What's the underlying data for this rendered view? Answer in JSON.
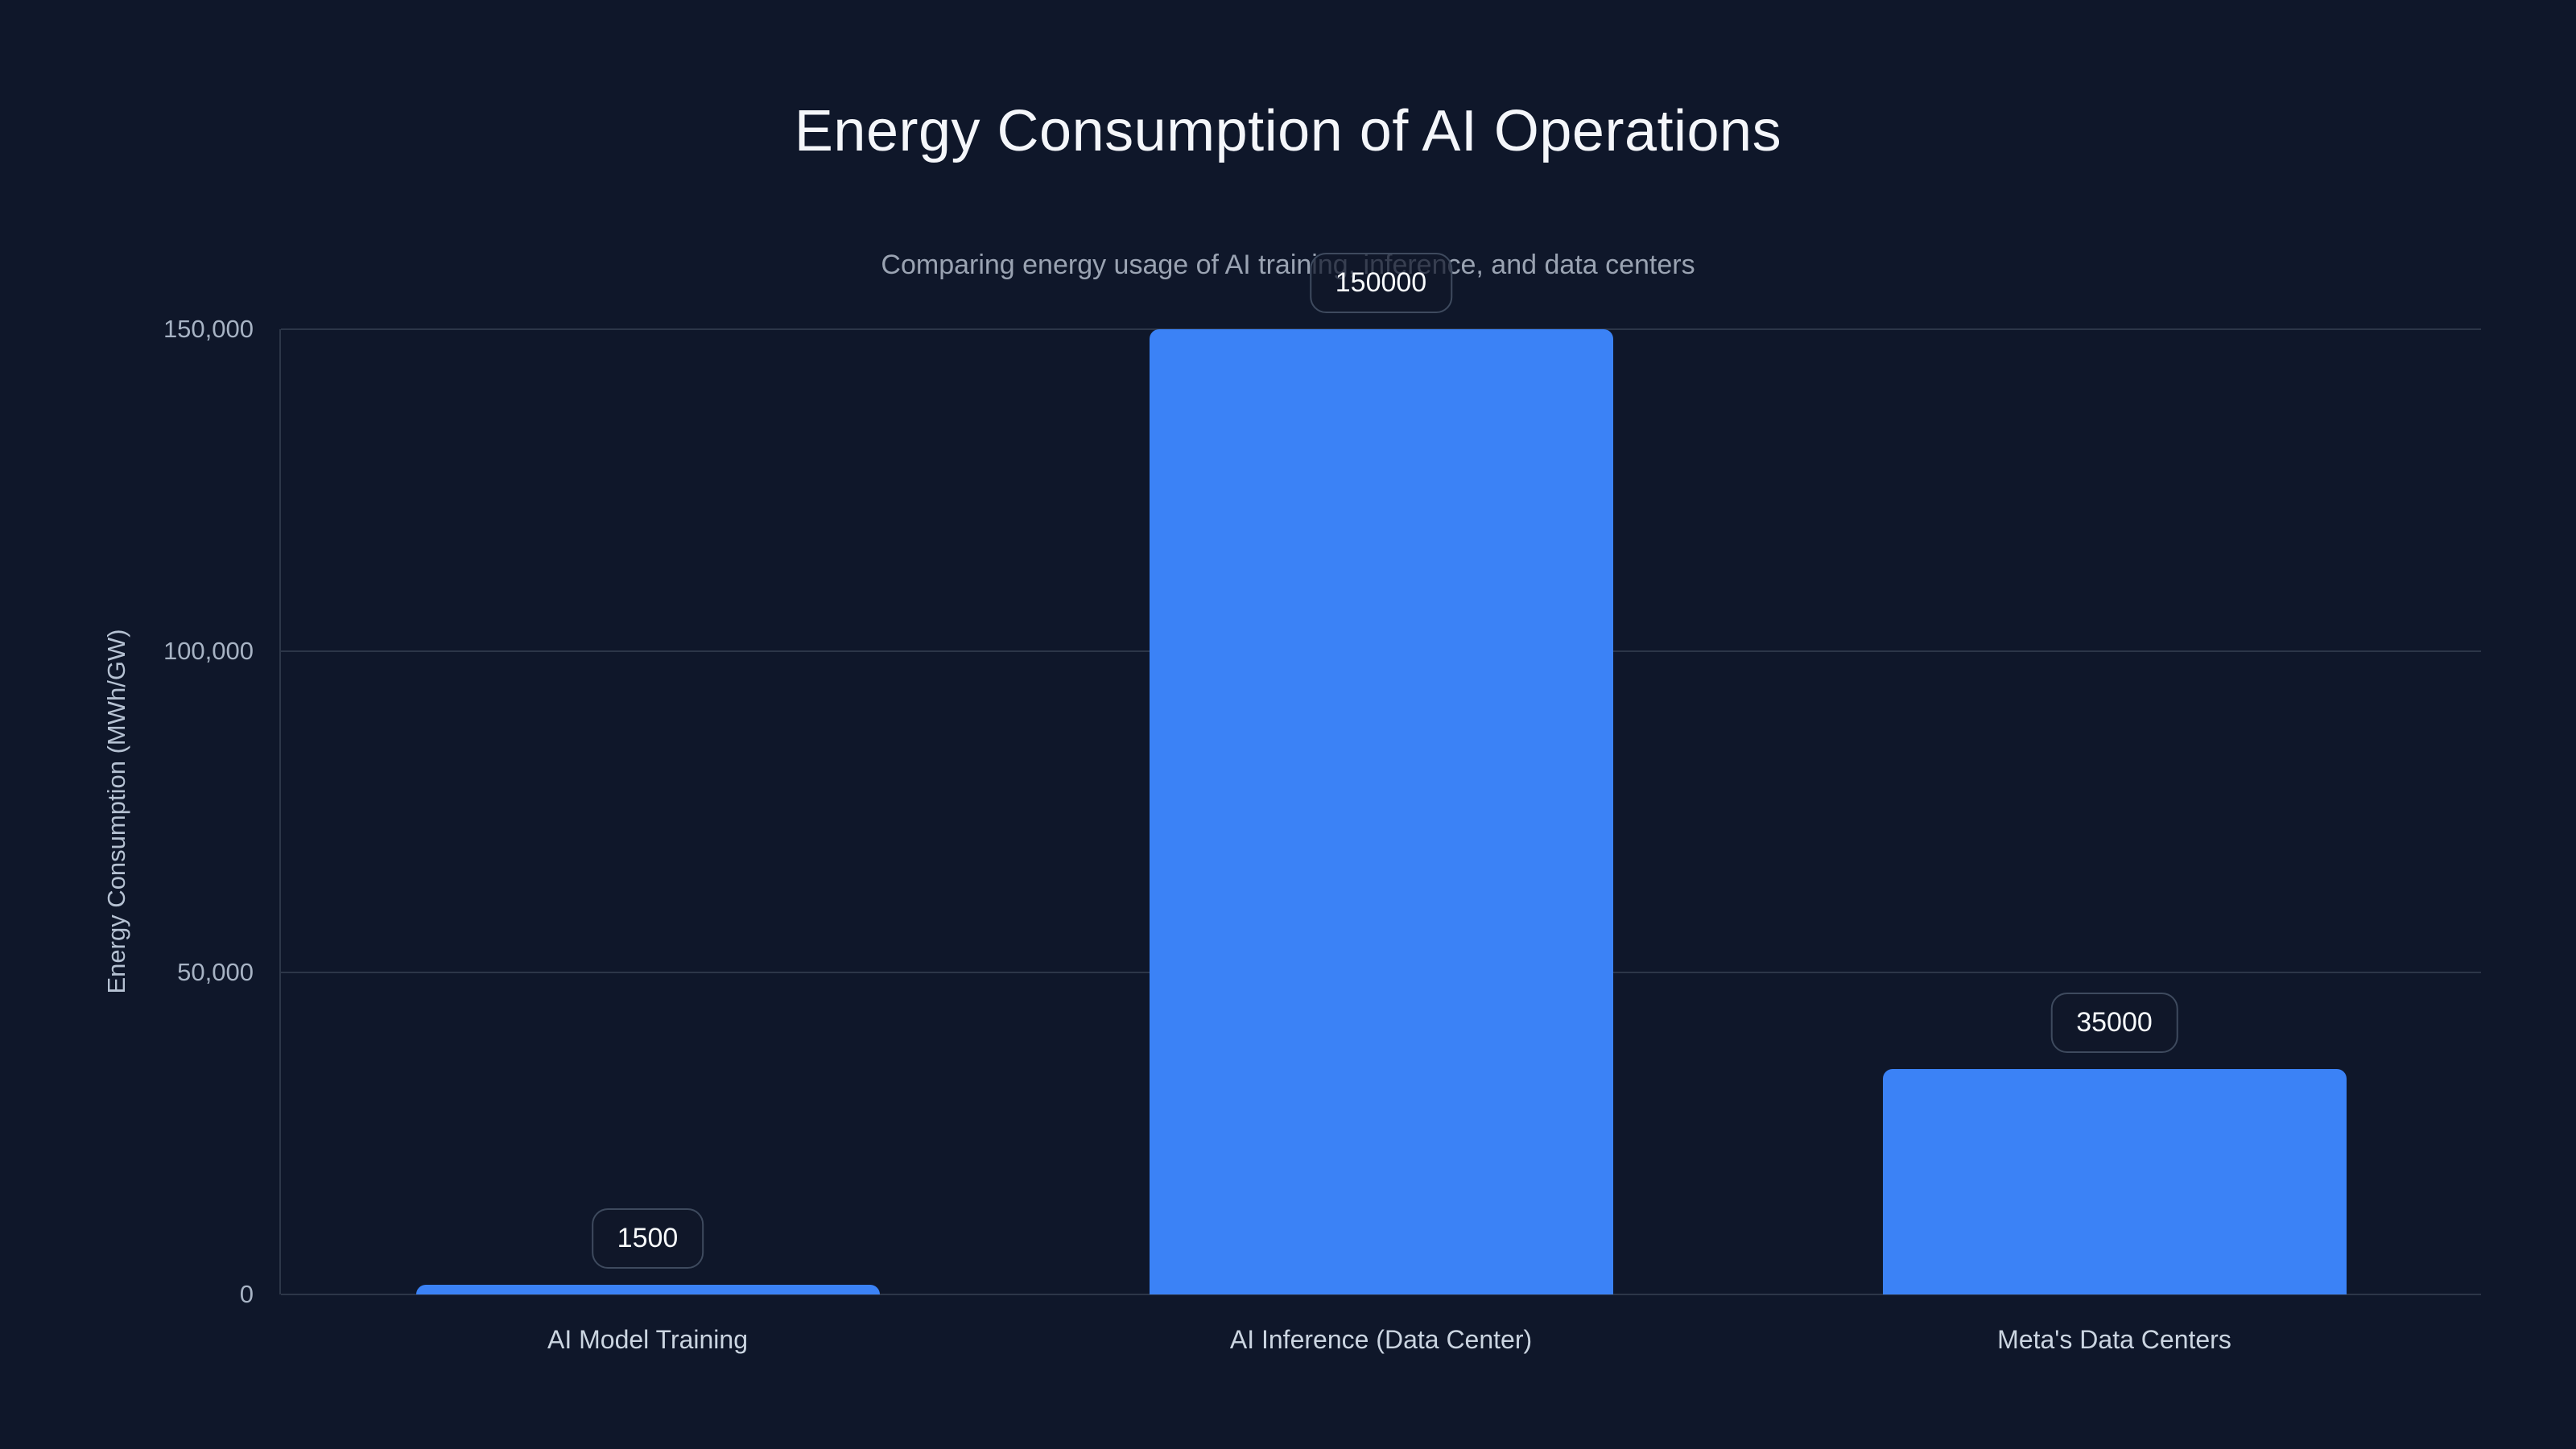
{
  "page": {
    "background_color": "#0f172a"
  },
  "header": {
    "title": "Energy Consumption of AI Operations",
    "subtitle": "Comparing energy usage of AI training, inference, and data centers"
  },
  "chart_data": {
    "type": "bar",
    "title": "Energy Consumption of AI Operations",
    "subtitle": "Comparing energy usage of AI training, inference, and data centers",
    "categories": [
      "AI Model Training",
      "AI Inference (Data Center)",
      "Meta's Data Centers"
    ],
    "values": [
      1500,
      150000,
      35000
    ],
    "value_labels": [
      "1500",
      "150000",
      "35000"
    ],
    "xlabel": "",
    "ylabel": "Energy Consumption (MWh/GW)",
    "ylim": [
      0,
      150000
    ],
    "yticks": [
      {
        "value": 0,
        "label": "0"
      },
      {
        "value": 50000,
        "label": "50,000"
      },
      {
        "value": 100000,
        "label": "100,000"
      },
      {
        "value": 150000,
        "label": "150,000"
      }
    ],
    "grid": true,
    "legend": false,
    "bar_color": "#3b82f6",
    "gridline_color": "#2c3648",
    "tick_label_color": "#a7b3c4",
    "category_label_color": "#cbd5e1",
    "value_label_text_color": "#f7fafc",
    "value_label_border_color": "#3e4a5e",
    "title_color": "#f4f6fa",
    "subtitle_color": "#9aa3b2"
  }
}
